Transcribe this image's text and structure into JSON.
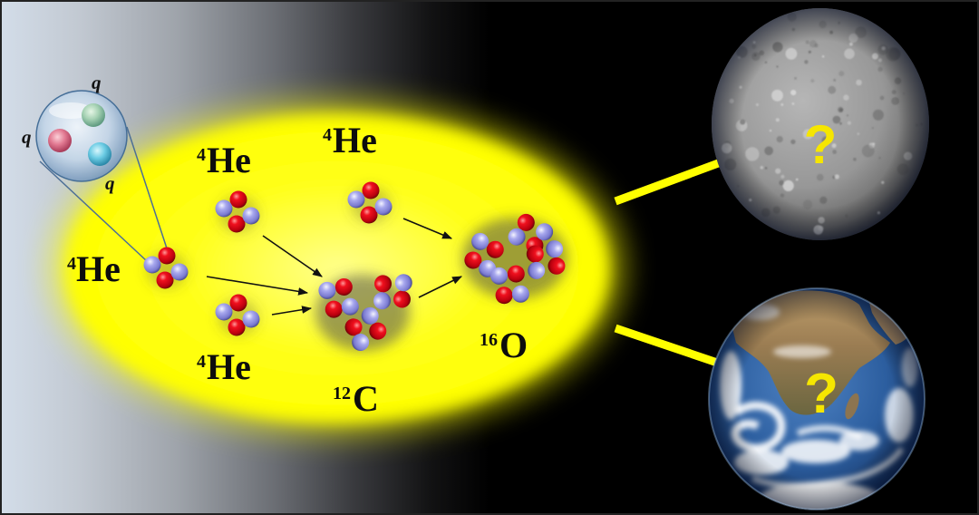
{
  "diagram": {
    "helium_left": {
      "mass": "4",
      "symbol": "He"
    },
    "helium_top_left": {
      "mass": "4",
      "symbol": "He"
    },
    "helium_top_right": {
      "mass": "4",
      "symbol": "He"
    },
    "helium_bottom": {
      "mass": "4",
      "symbol": "He"
    },
    "carbon": {
      "mass": "12",
      "symbol": "C"
    },
    "oxygen": {
      "mass": "16",
      "symbol": "O"
    },
    "quark_labels": [
      "q",
      "q",
      "q"
    ],
    "planets": [
      {
        "icon": "gray-cratered-planet-icon",
        "mark": "?"
      },
      {
        "icon": "earth-globe-icon",
        "mark": "?"
      }
    ]
  },
  "colors": {
    "background_left": "#d3dde9",
    "background_right": "#000000",
    "glow": "#ffff00",
    "arrow_yellow": "#ffff00",
    "question_mark": "#f6e600",
    "proton": "#e0001a",
    "neutron": "#9a9ae6",
    "reaction_arrow": "#111111"
  }
}
